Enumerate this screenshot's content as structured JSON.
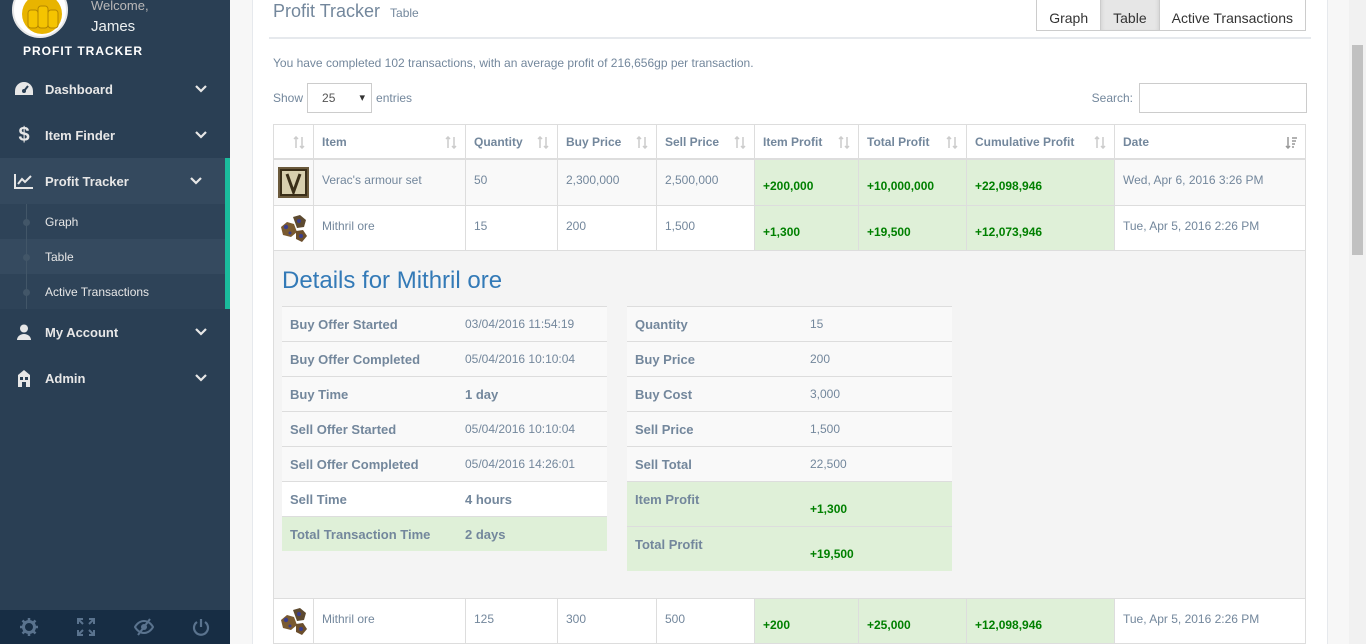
{
  "sidebar": {
    "welcome": "Welcome,",
    "user": "James",
    "brand": "PROFIT TRACKER",
    "items": [
      {
        "label": "Dashboard"
      },
      {
        "label": "Item Finder"
      },
      {
        "label": "Profit Tracker"
      },
      {
        "label": "My Account"
      },
      {
        "label": "Admin"
      }
    ],
    "subitems": [
      {
        "label": "Graph"
      },
      {
        "label": "Table"
      },
      {
        "label": "Active Transactions"
      }
    ]
  },
  "header": {
    "title": "Profit Tracker",
    "subtitle": "Table",
    "tabs": [
      "Graph",
      "Table",
      "Active Transactions"
    ]
  },
  "summary": "You have completed 102 transactions, with an average profit of 216,656gp per transaction.",
  "length": {
    "show": "Show",
    "value": "25",
    "entries": "entries"
  },
  "search": {
    "label": "Search:",
    "placeholder": ""
  },
  "table": {
    "columns": [
      "",
      "Item",
      "Quantity",
      "Buy Price",
      "Sell Price",
      "Item Profit",
      "Total Profit",
      "Cumulative Profit",
      "Date"
    ],
    "rows": [
      {
        "item": "Verac's armour set",
        "quantity": "50",
        "buy": "2,300,000",
        "sell": "2,500,000",
        "item_profit": "+200,000",
        "total_profit": "+10,000,000",
        "cumulative": "+22,098,946",
        "date": "Wed, Apr 6, 2016 3:26 PM"
      },
      {
        "item": "Mithril ore",
        "quantity": "15",
        "buy": "200",
        "sell": "1,500",
        "item_profit": "+1,300",
        "total_profit": "+19,500",
        "cumulative": "+12,073,946",
        "date": "Tue, Apr 5, 2016 2:26 PM"
      },
      {
        "item": "Mithril ore",
        "quantity": "125",
        "buy": "300",
        "sell": "500",
        "item_profit": "+200",
        "total_profit": "+25,000",
        "cumulative": "+12,098,946",
        "date": "Tue, Apr 5, 2016 2:26 PM"
      }
    ]
  },
  "details": {
    "title": "Details for Mithril ore",
    "left": [
      {
        "k": "Buy Offer Started",
        "v": "03/04/2016 11:54:19"
      },
      {
        "k": "Buy Offer Completed",
        "v": "05/04/2016 10:10:04"
      },
      {
        "k": "Buy Time",
        "v": "1 day"
      },
      {
        "k": "Sell Offer Started",
        "v": "05/04/2016 10:10:04"
      },
      {
        "k": "Sell Offer Completed",
        "v": "05/04/2016 14:26:01"
      },
      {
        "k": "Sell Time",
        "v": "4 hours"
      },
      {
        "k": "Total Transaction Time",
        "v": "2 days"
      }
    ],
    "right": [
      {
        "k": "Quantity",
        "v": "15"
      },
      {
        "k": "Buy Price",
        "v": "200"
      },
      {
        "k": "Buy Cost",
        "v": "3,000"
      },
      {
        "k": "Sell Price",
        "v": "1,500"
      },
      {
        "k": "Sell Total",
        "v": "22,500"
      },
      {
        "k": "Item Profit",
        "v": "+1,300"
      },
      {
        "k": "Total Profit",
        "v": "+19,500"
      }
    ]
  },
  "footer_icons": [
    "gear-icon",
    "fullscreen-icon",
    "eye-slash-icon",
    "power-icon"
  ],
  "colors": {
    "sidebar": "#2a3f54",
    "accent": "#1abb9c",
    "profit_bg": "#dff0d8",
    "profit_text": "#008000",
    "link": "#337ab7"
  }
}
